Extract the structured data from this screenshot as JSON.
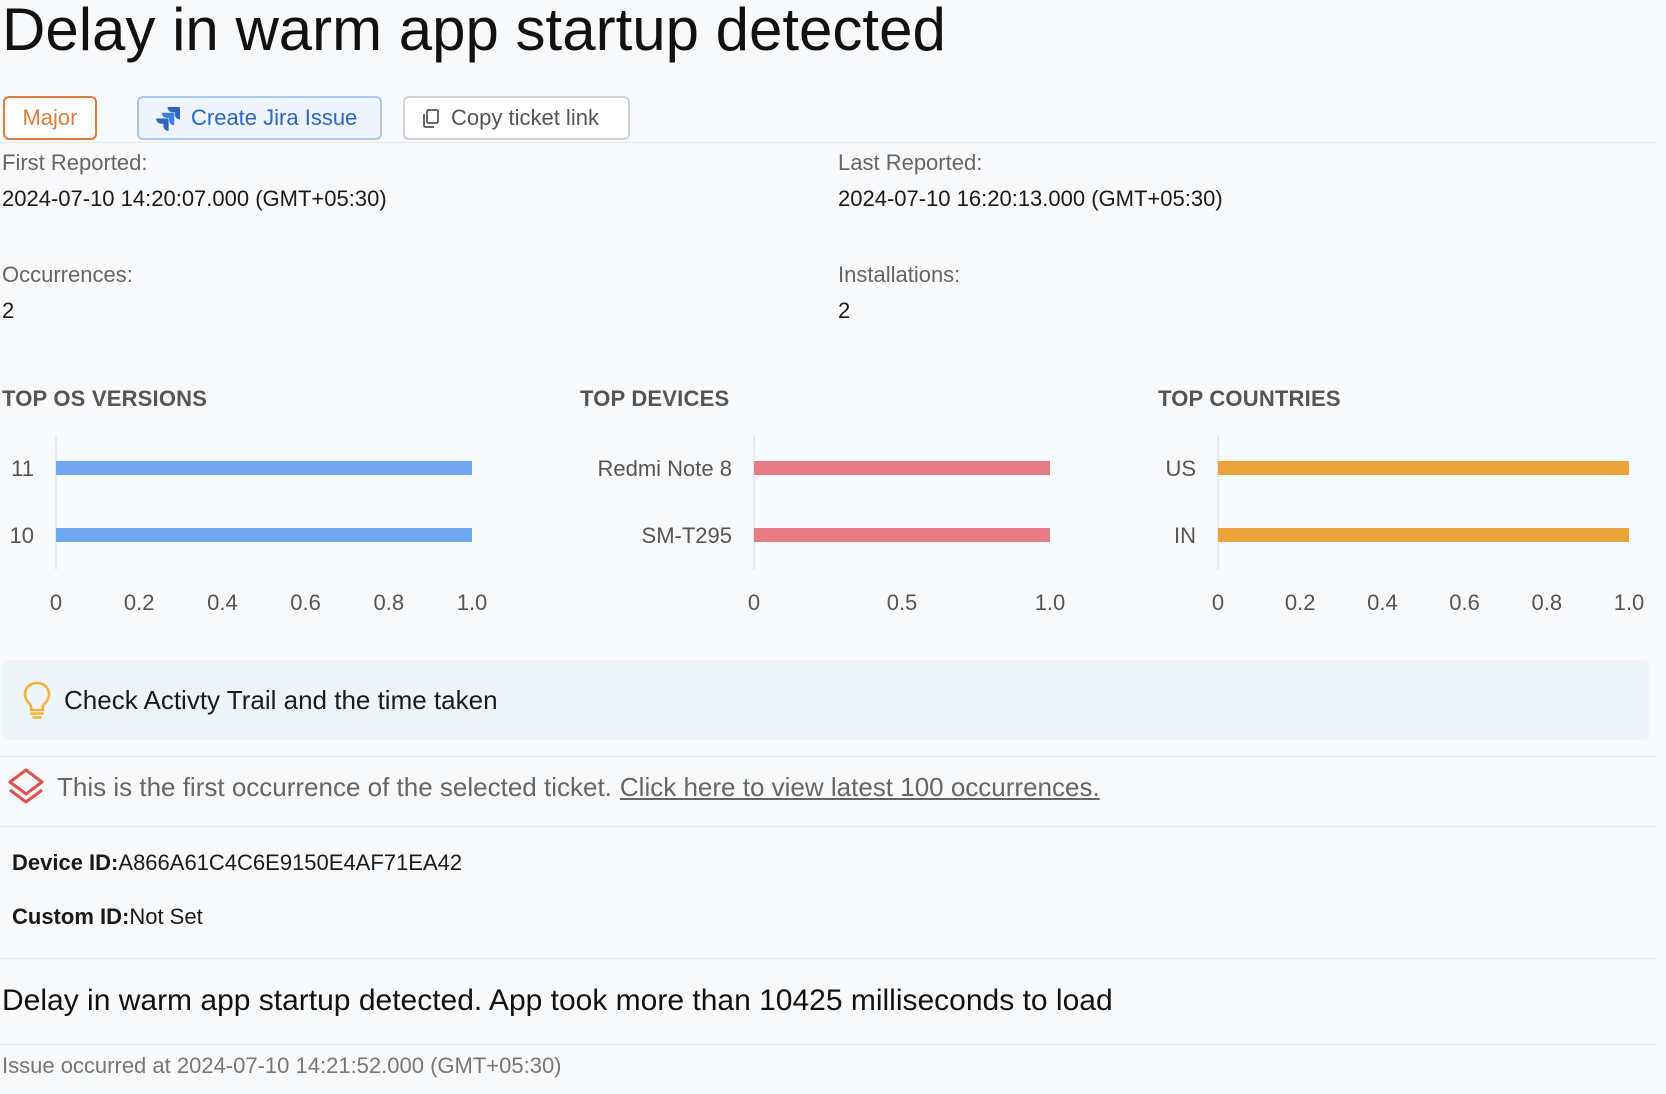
{
  "header": {
    "title": "Delay in warm app startup detected"
  },
  "actions": {
    "severity_label": "Major",
    "jira_label": "Create Jira Issue",
    "copy_label": "Copy ticket link"
  },
  "stats": {
    "first_reported_label": "First Reported:",
    "first_reported_value": "2024-07-10 14:20:07.000 (GMT+05:30)",
    "last_reported_label": "Last Reported:",
    "last_reported_value": "2024-07-10 16:20:13.000 (GMT+05:30)",
    "occurrences_label": "Occurrences:",
    "occurrences_value": "2",
    "installations_label": "Installations:",
    "installations_value": "2"
  },
  "chart_data": [
    {
      "type": "bar",
      "orientation": "horizontal",
      "title": "TOP OS VERSIONS",
      "categories": [
        "11",
        "10"
      ],
      "values": [
        1.0,
        1.0
      ],
      "xlim": [
        0,
        1.0
      ],
      "xticks": [
        "0",
        "0.2",
        "0.4",
        "0.6",
        "0.8",
        "1.0"
      ],
      "color": "#6fa6ee"
    },
    {
      "type": "bar",
      "orientation": "horizontal",
      "title": "TOP DEVICES",
      "categories": [
        "Redmi Note 8",
        "SM-T295"
      ],
      "values": [
        1.0,
        1.0
      ],
      "xlim": [
        0,
        1.0
      ],
      "xticks": [
        "0",
        "0.5",
        "1.0"
      ],
      "color": "#e97b86"
    },
    {
      "type": "bar",
      "orientation": "horizontal",
      "title": "TOP COUNTRIES",
      "categories": [
        "US",
        "IN"
      ],
      "values": [
        1.0,
        1.0
      ],
      "xlim": [
        0,
        1.0
      ],
      "xticks": [
        "0",
        "0.2",
        "0.4",
        "0.6",
        "0.8",
        "1.0"
      ],
      "color": "#eaa23c"
    }
  ],
  "tip": {
    "icon": "lightbulb-icon",
    "text": "Check Activty Trail and the time taken"
  },
  "occurrence_notice": {
    "icon": "layers-icon",
    "text": "This is the first occurrence of the selected ticket.",
    "link_text": "Click here to view latest 100 occurrences."
  },
  "identifiers": {
    "device_id_label": "Device ID:",
    "device_id_value": "A866A61C4C6E9150E4AF71EA42",
    "custom_id_label": "Custom ID:",
    "custom_id_value": "Not Set"
  },
  "issue": {
    "description": "Delay in warm app startup detected. App took more than 10425 milliseconds to load",
    "occurred_at": "Issue occurred at 2024-07-10 14:21:52.000 (GMT+05:30)"
  },
  "colors": {
    "major": "#e07b39",
    "jira": "#2b66c4",
    "tip_bg": "#eef5f9",
    "layers_icon": "#e0524f"
  }
}
